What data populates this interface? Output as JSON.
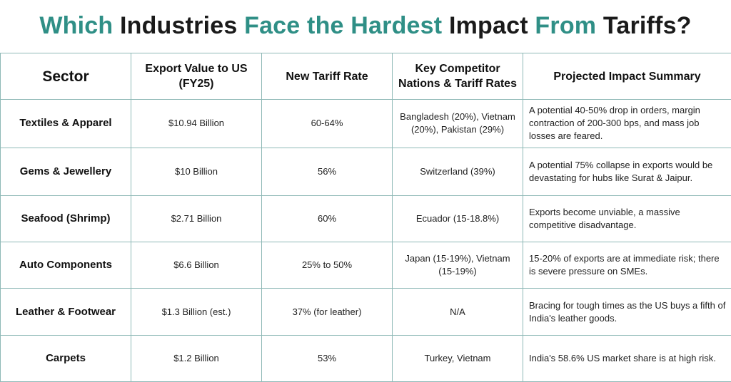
{
  "title": {
    "part1": "Which",
    "part2": "Industries",
    "part3": "Face the Hardest",
    "part4": "Impact",
    "part5": "From",
    "part6": "Tariffs?"
  },
  "colors": {
    "accent_teal": "#2f8f86",
    "title_dark": "#1a1a1a",
    "grid_line": "#8fb9b7"
  },
  "table": {
    "headers": {
      "sector": "Sector",
      "export_value": "Export Value to US (FY25)",
      "tariff_rate": "New Tariff Rate",
      "competitors": "Key Competitor Nations & Tariff Rates",
      "impact": "Projected Impact Summary"
    },
    "rows": [
      {
        "sector": "Textiles & Apparel",
        "export_value": "$10.94 Billion",
        "tariff_rate": "60-64%",
        "competitors": "Bangladesh (20%), Vietnam (20%), Pakistan (29%)",
        "impact": "A potential 40-50% drop in orders, margin contraction of 200-300 bps, and mass job losses are feared."
      },
      {
        "sector": "Gems & Jewellery",
        "export_value": "$10 Billion",
        "tariff_rate": "56%",
        "competitors": "Switzerland (39%)",
        "impact": "A potential 75% collapse in exports would be devastating for hubs like Surat & Jaipur."
      },
      {
        "sector": "Seafood (Shrimp)",
        "export_value": "$2.71 Billion",
        "tariff_rate": "60%",
        "competitors": "Ecuador (15-18.8%)",
        "impact": "Exports become unviable, a massive competitive disadvantage."
      },
      {
        "sector": "Auto Components",
        "export_value": "$6.6 Billion",
        "tariff_rate": "25% to 50%",
        "competitors": "Japan (15-19%), Vietnam (15-19%)",
        "impact": "15-20% of exports are at immediate risk; there is severe pressure on SMEs."
      },
      {
        "sector": "Leather & Footwear",
        "export_value": "$1.3 Billion (est.)",
        "tariff_rate": "37% (for leather)",
        "competitors": "N/A",
        "impact": "Bracing for tough times as the US buys a fifth of India's leather goods."
      },
      {
        "sector": "Carpets",
        "export_value": "$1.2 Billion",
        "tariff_rate": "53%",
        "competitors": "Turkey, Vietnam",
        "impact": "India's 58.6% US market share is at high risk."
      }
    ]
  }
}
